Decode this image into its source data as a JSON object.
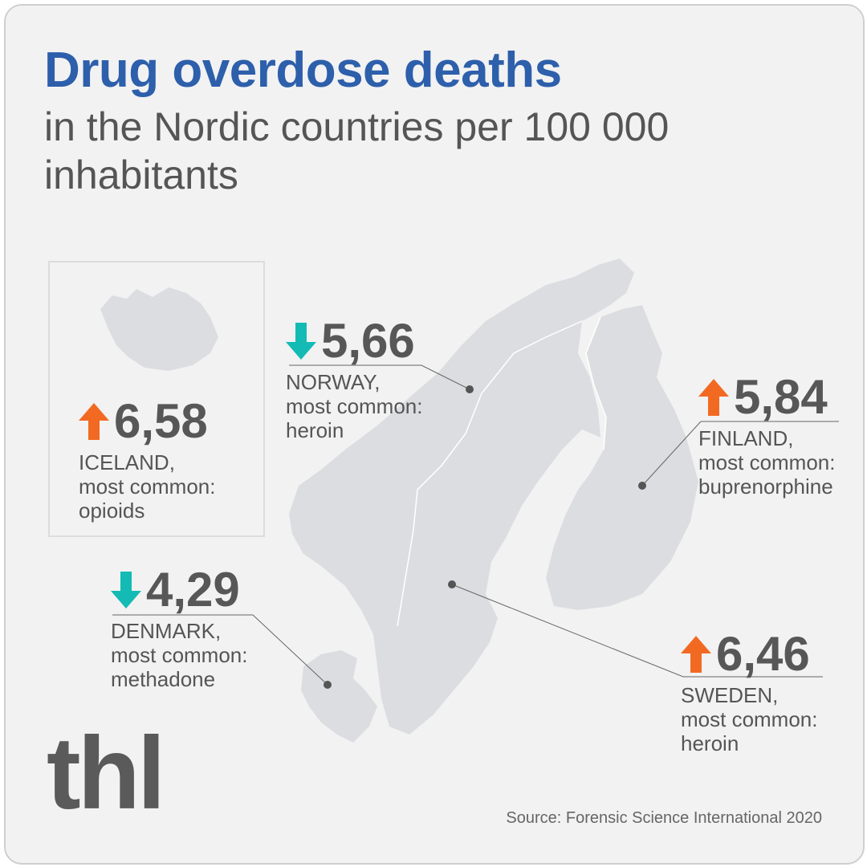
{
  "header": {
    "title": "Drug overdose deaths",
    "subtitle": "in the Nordic countries per 100 000 inhabitants"
  },
  "colors": {
    "title": "#2d5fab",
    "up": "#f26a22",
    "down": "#13bbb4",
    "land": "#dcdde0"
  },
  "countries": [
    {
      "value": "6,58",
      "trend": "up",
      "name": "ICELAND,",
      "line1": "most common:",
      "line2": "opioids"
    },
    {
      "value": "5,66",
      "trend": "down",
      "name": "NORWAY,",
      "line1": "most common:",
      "line2": "heroin"
    },
    {
      "value": "5,84",
      "trend": "up",
      "name": "FINLAND,",
      "line1": "most common:",
      "line2": "buprenorphine"
    },
    {
      "value": "4,29",
      "trend": "down",
      "name": "DENMARK,",
      "line1": "most common:",
      "line2": "methadone"
    },
    {
      "value": "6,46",
      "trend": "up",
      "name": "SWEDEN,",
      "line1": "most common:",
      "line2": "heroin"
    }
  ],
  "logo": "thl",
  "source": "Source: Forensic Science International 2020"
}
